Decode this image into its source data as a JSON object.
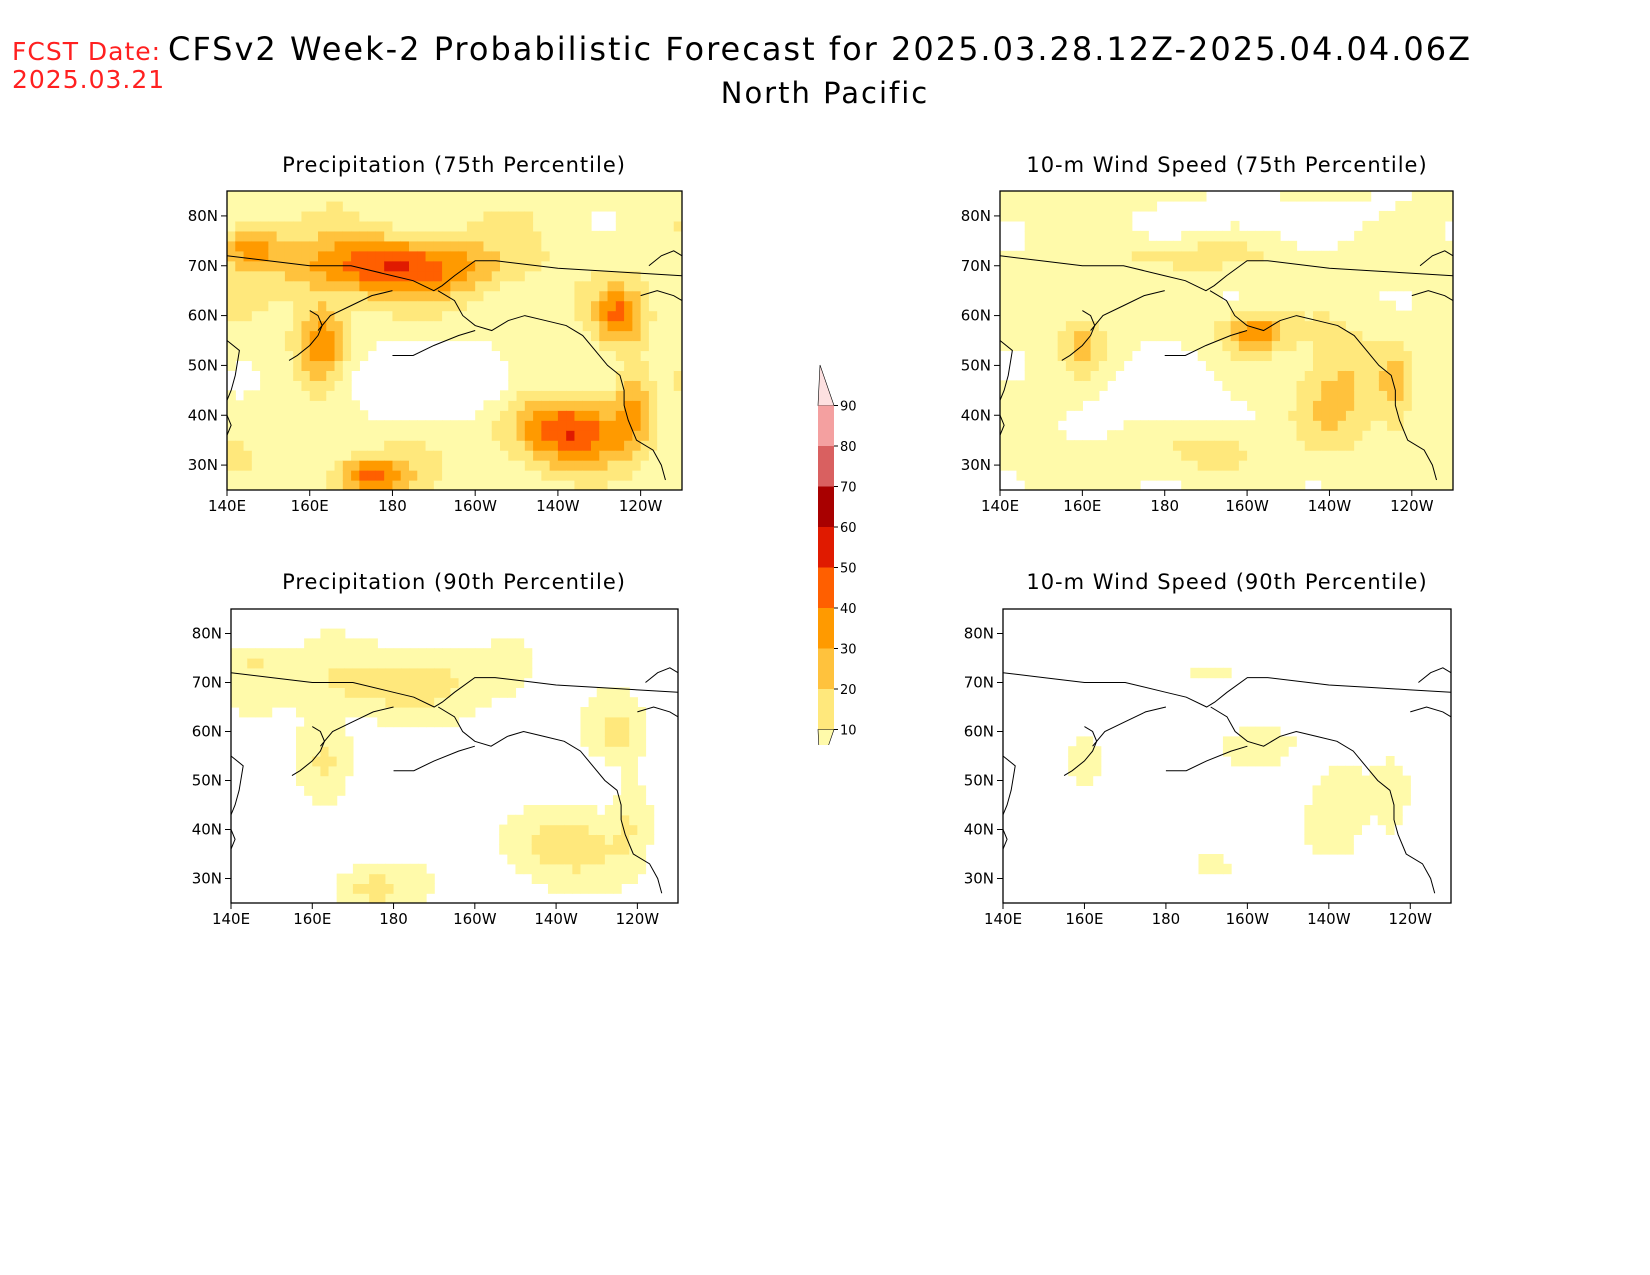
{
  "header": {
    "fcst_label": "FCST Date:",
    "fcst_date": "2025.03.21",
    "title": "CFSv2 Week-2 Probabilistic Forecast for 2025.03.28.12Z-2025.04.04.06Z",
    "subtitle": "North Pacific"
  },
  "panels": [
    {
      "title": "Precipitation (75th Percentile)",
      "intensity": 1.0,
      "variant": "precip"
    },
    {
      "title": "10-m Wind Speed (75th Percentile)",
      "intensity": 0.85,
      "variant": "wind"
    },
    {
      "title": "Precipitation (90th Percentile)",
      "intensity": 0.45,
      "variant": "precip"
    },
    {
      "title": "10-m Wind Speed (90th Percentile)",
      "intensity": 0.35,
      "variant": "wind"
    }
  ],
  "axes": {
    "lat_labels": [
      "80N",
      "70N",
      "60N",
      "50N",
      "40N",
      "30N"
    ],
    "lat_values": [
      80,
      70,
      60,
      50,
      40,
      30
    ],
    "lon_labels": [
      "140E",
      "160E",
      "180",
      "160W",
      "140W",
      "120W"
    ],
    "lon_values": [
      140,
      160,
      180,
      200,
      220,
      240
    ],
    "lat_range": [
      25,
      85
    ],
    "lon_range": [
      140,
      250
    ]
  },
  "colorbar": {
    "levels": [
      "10",
      "20",
      "30",
      "40",
      "50",
      "60",
      "70",
      "80",
      "90"
    ],
    "colors": [
      "#fffaaa",
      "#ffe87c",
      "#ffc23d",
      "#ff9a00",
      "#ff5f00",
      "#e01a00",
      "#a80000",
      "#d96060",
      "#f4a0a0",
      "#fde0e0"
    ]
  }
}
